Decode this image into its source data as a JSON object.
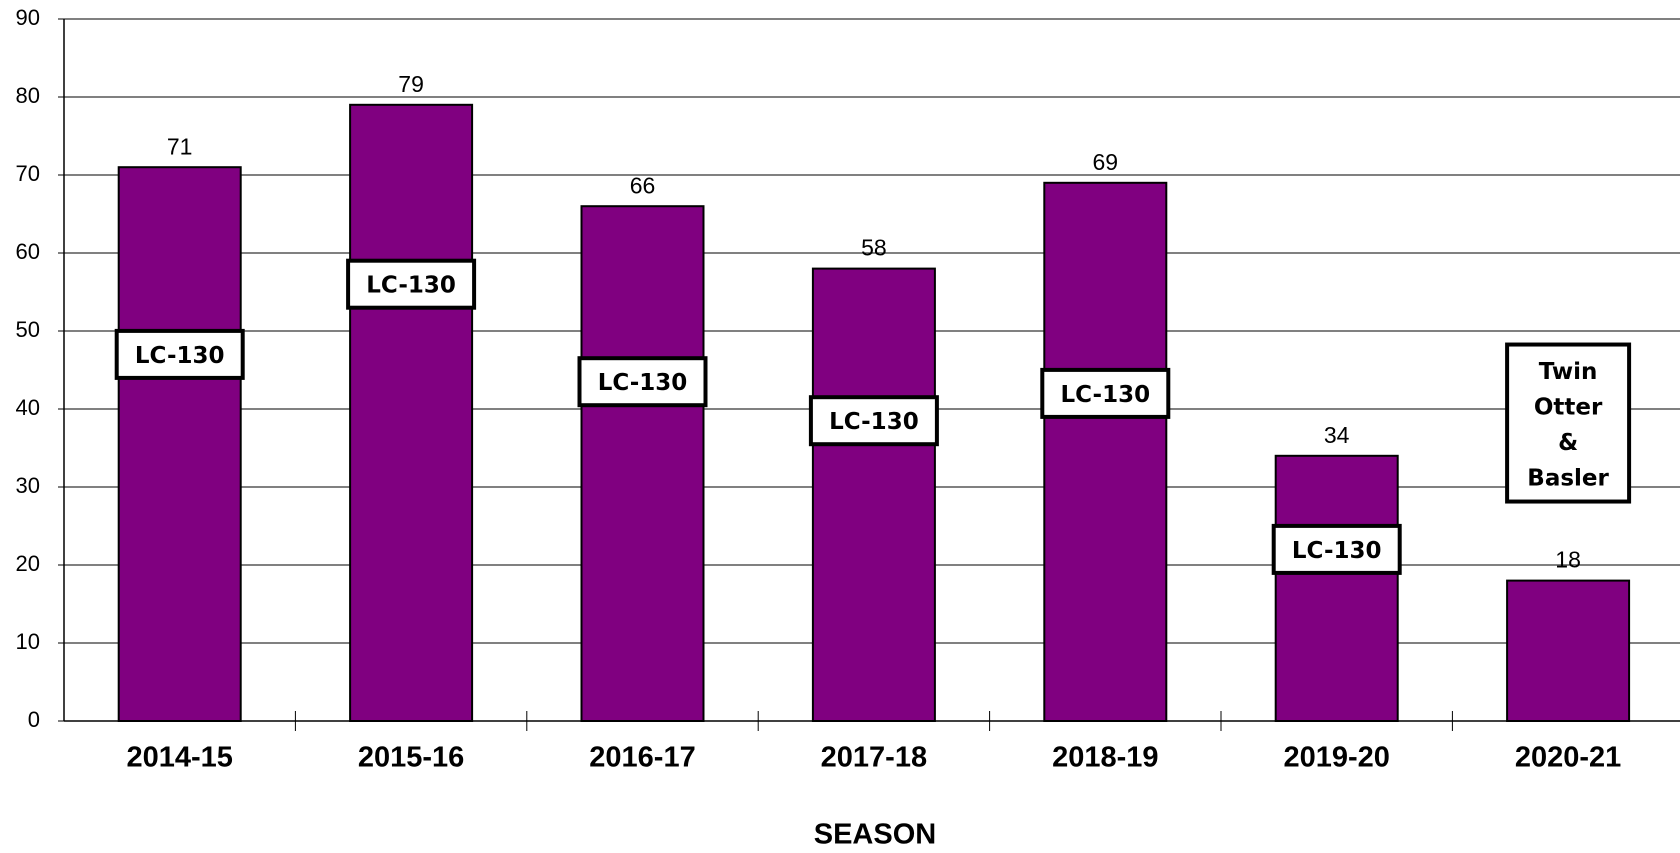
{
  "chart_data": {
    "type": "bar",
    "x_label": "SEASON",
    "categories": [
      "2014-15",
      "2015-16",
      "2016-17",
      "2017-18",
      "2018-19",
      "2019-20",
      "2020-21"
    ],
    "values": [
      71,
      79,
      66,
      58,
      69,
      34,
      18
    ],
    "color": "#800080",
    "ylim": [
      0,
      90
    ],
    "yticks": [
      0,
      10,
      20,
      30,
      40,
      50,
      60,
      70,
      80,
      90
    ],
    "grid": true,
    "annotations": [
      "LC-130",
      "LC-130",
      "LC-130",
      "LC-130",
      "LC-130",
      "LC-130",
      [
        "Twin",
        "Otter",
        "&",
        "Basler"
      ]
    ]
  }
}
